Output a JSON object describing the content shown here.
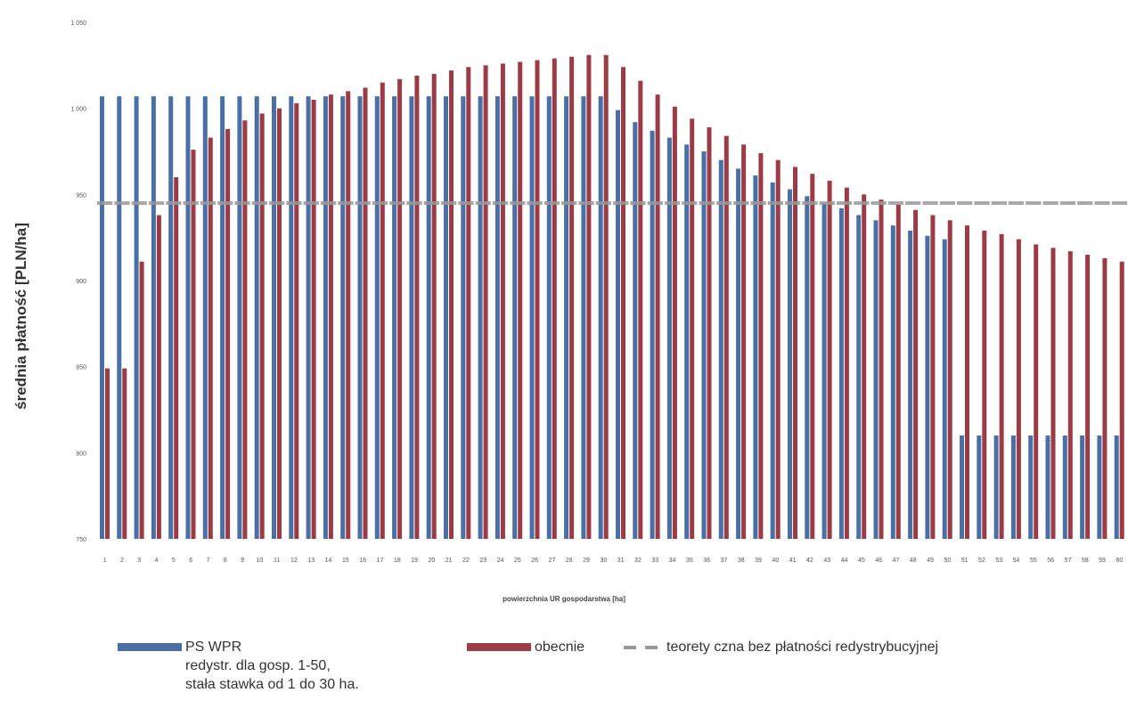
{
  "chart_data": {
    "type": "bar",
    "ylabel": "średnia płatność [PLN/ha]",
    "xlabel": "powierzchnia UR gospodarstwa [ha]",
    "ylim": [
      750,
      1050
    ],
    "yticks": [
      "750",
      "800",
      "850",
      "900",
      "950",
      "1 000",
      "1 050"
    ],
    "categories": [
      "1",
      "2",
      "3",
      "4",
      "5",
      "6",
      "7",
      "8",
      "9",
      "10",
      "11",
      "12",
      "13",
      "14",
      "15",
      "16",
      "17",
      "18",
      "19",
      "20",
      "21",
      "22",
      "23",
      "24",
      "25",
      "26",
      "27",
      "28",
      "29",
      "30",
      "31",
      "32",
      "33",
      "34",
      "35",
      "36",
      "37",
      "38",
      "39",
      "40",
      "41",
      "42",
      "43",
      "44",
      "45",
      "46",
      "47",
      "48",
      "49",
      "50",
      "51",
      "52",
      "53",
      "54",
      "55",
      "56",
      "57",
      "58",
      "59",
      "60"
    ],
    "series": [
      {
        "name": "PS WPR redystr. dla gosp. 1-50, stała stawka od 1 do 30 ha.",
        "color": "#4a6fa5",
        "values": [
          1007,
          1007,
          1007,
          1007,
          1007,
          1007,
          1007,
          1007,
          1007,
          1007,
          1007,
          1007,
          1007,
          1007,
          1007,
          1007,
          1007,
          1007,
          1007,
          1007,
          1007,
          1007,
          1007,
          1007,
          1007,
          1007,
          1007,
          1007,
          1007,
          1007,
          999,
          992,
          987,
          983,
          979,
          975,
          970,
          965,
          961,
          957,
          953,
          949,
          945,
          942,
          938,
          935,
          932,
          929,
          926,
          924,
          810,
          810,
          810,
          810,
          810,
          810,
          810,
          810,
          810,
          810
        ]
      },
      {
        "name": "obecnie",
        "color": "#9b3b45",
        "values": [
          849,
          849,
          911,
          938,
          960,
          976,
          983,
          988,
          993,
          997,
          1000,
          1003,
          1005,
          1008,
          1010,
          1012,
          1015,
          1017,
          1019,
          1020,
          1022,
          1024,
          1025,
          1026,
          1027,
          1028,
          1029,
          1030,
          1031,
          1031,
          1024,
          1016,
          1008,
          1001,
          994,
          989,
          984,
          979,
          974,
          970,
          966,
          962,
          958,
          954,
          950,
          947,
          944,
          941,
          938,
          935,
          932,
          929,
          927,
          924,
          921,
          919,
          917,
          915,
          913,
          911
        ]
      },
      {
        "name": "teoretyczna bez płatności redystrybucyjnej",
        "color": "#999999",
        "values": [
          945,
          945,
          945,
          945,
          945,
          945,
          945,
          945,
          945,
          945,
          945,
          945,
          945,
          945,
          945,
          945,
          945,
          945,
          945,
          945,
          945,
          945,
          945,
          945,
          945,
          945,
          945,
          945,
          945,
          945,
          945,
          945,
          945,
          945,
          945,
          945,
          945,
          945,
          945,
          945,
          945,
          945,
          945,
          945,
          945,
          945,
          945,
          945,
          945,
          945,
          945,
          945,
          945,
          945,
          945,
          945,
          945,
          945,
          945,
          945
        ]
      }
    ],
    "grid": false,
    "legend_position": "bottom"
  },
  "legend": {
    "ps_line1": "PS WPR",
    "ps_line2": "redystr. dla gosp. 1-50,",
    "ps_line3": "stała stawka od 1 do 30 ha.",
    "obecnie": "obecnie",
    "teoretyczna": "teorety czna bez płatności redystrybucyjnej"
  }
}
